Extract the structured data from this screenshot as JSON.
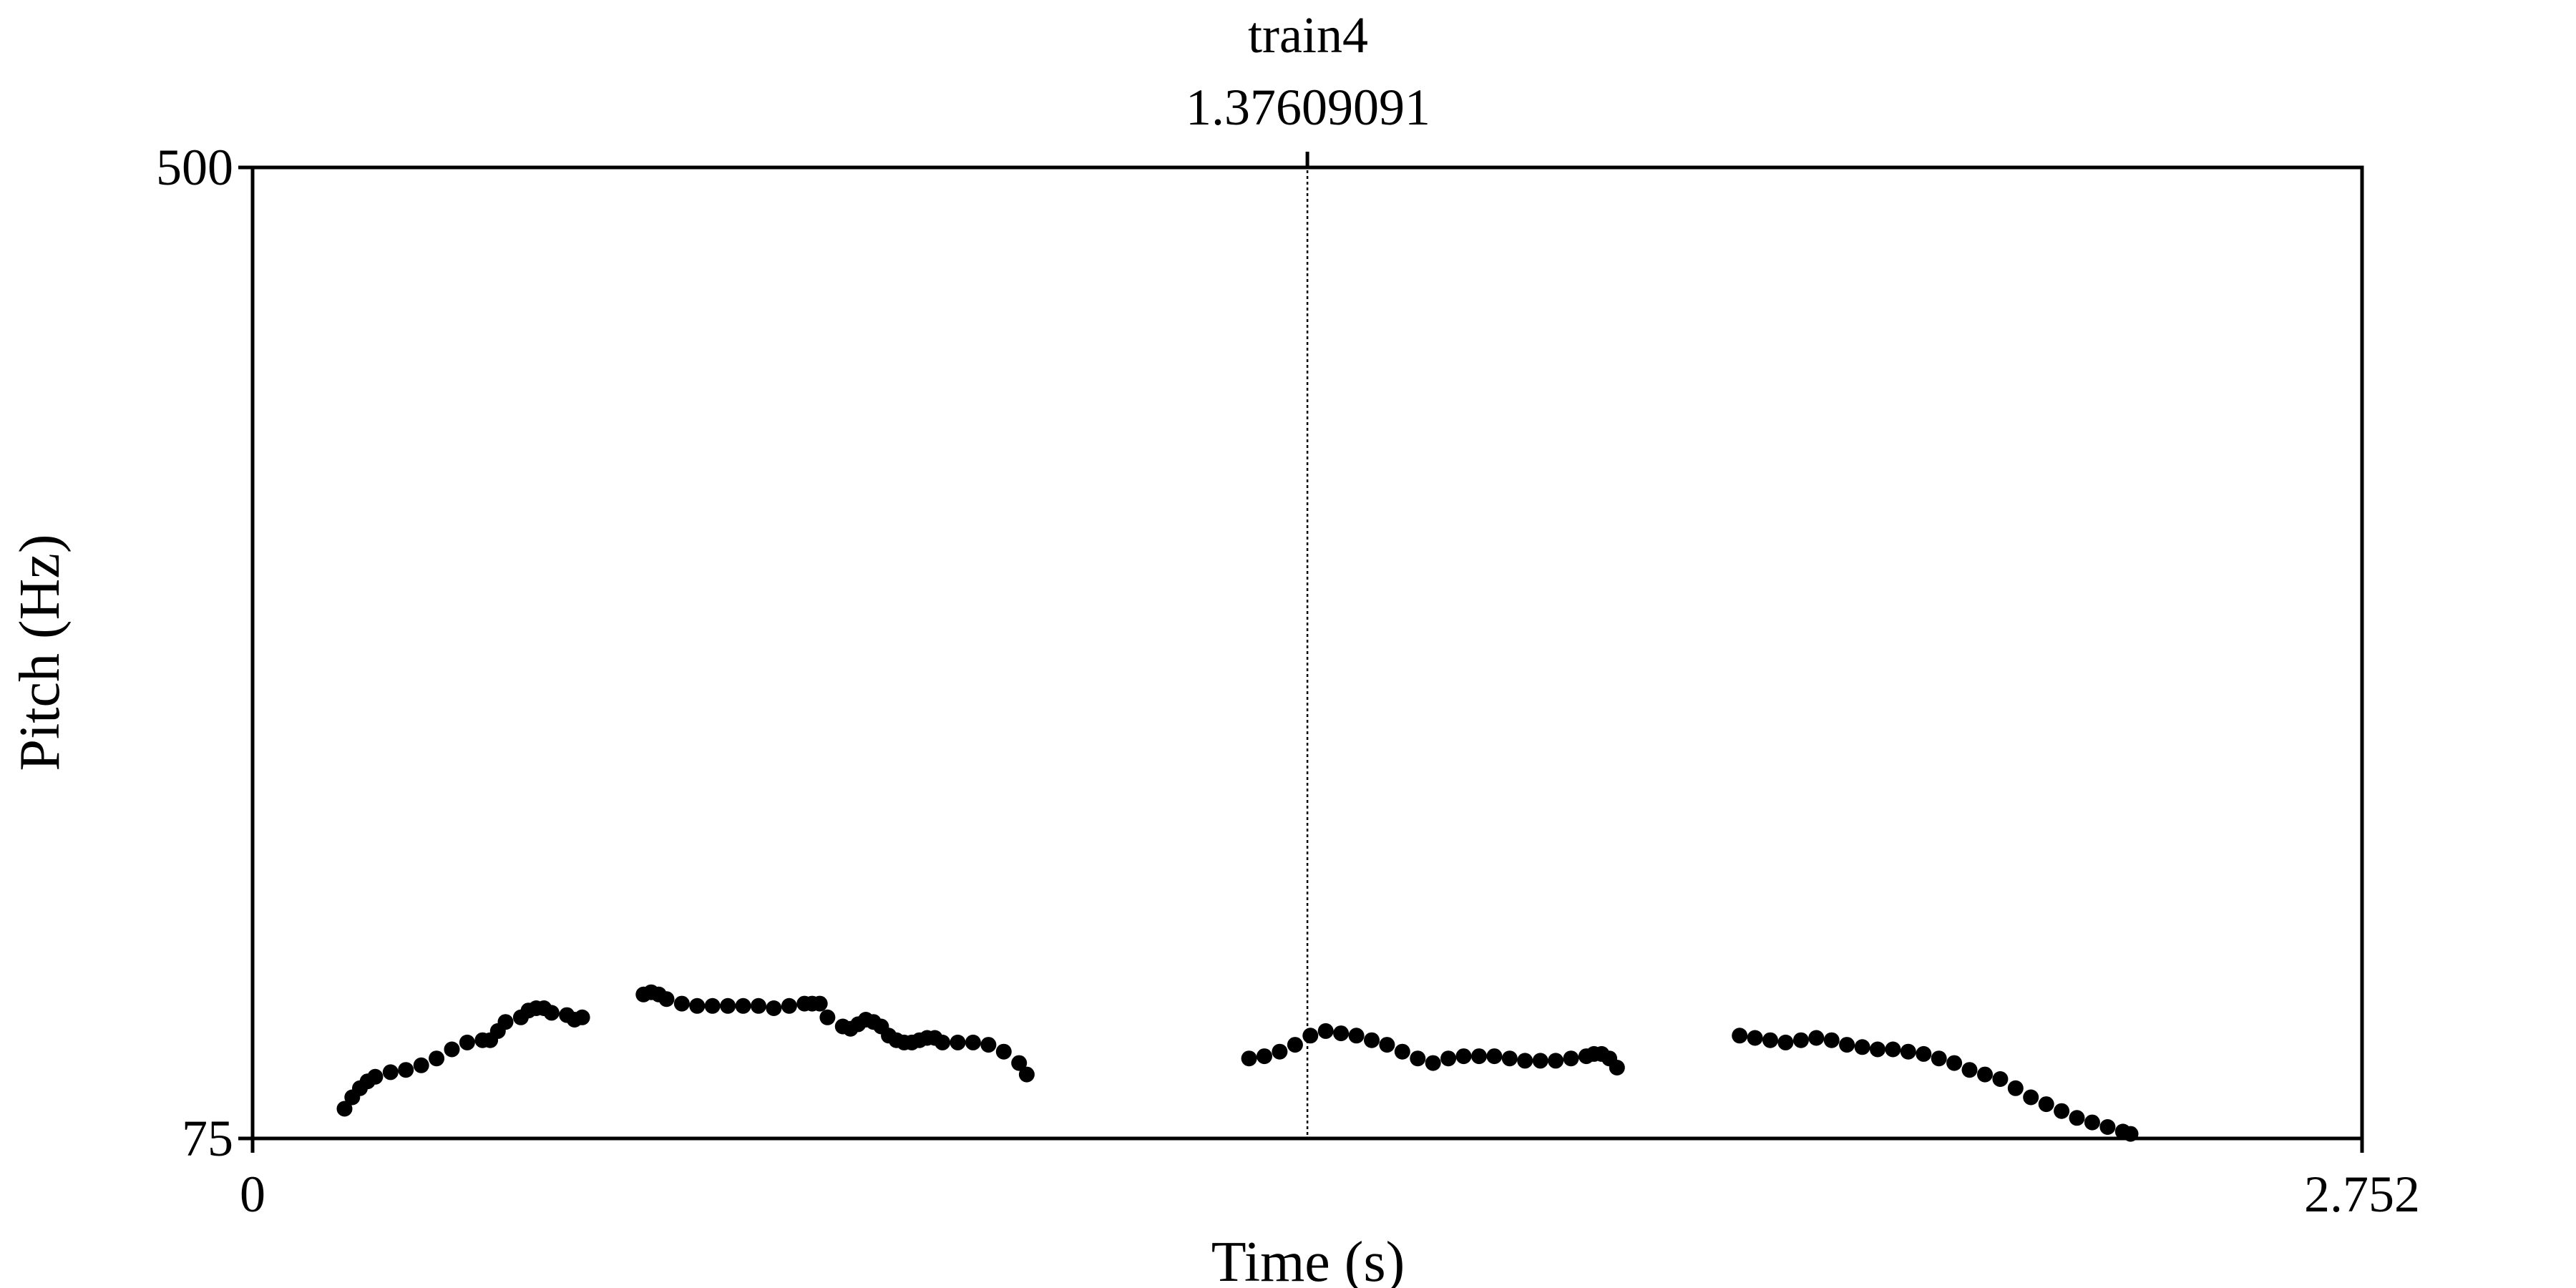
{
  "chart_data": {
    "type": "scatter",
    "title": "train4",
    "cursor": {
      "time": 1.37609091,
      "label": "1.37609091"
    },
    "xlabel": "Time (s)",
    "ylabel": "Pitch (Hz)",
    "xlim": [
      0,
      2.752
    ],
    "ylim": [
      75,
      500
    ],
    "x_tick_labels": [
      "0",
      "2.752"
    ],
    "y_tick_labels": [
      "75",
      "500"
    ],
    "grid": false,
    "marker_color": "#000000",
    "series": [
      {
        "points": [
          [
            0.12,
            88
          ],
          [
            0.13,
            93
          ],
          [
            0.14,
            97
          ],
          [
            0.15,
            100
          ],
          [
            0.16,
            102
          ],
          [
            0.18,
            104
          ],
          [
            0.2,
            105
          ],
          [
            0.22,
            107
          ],
          [
            0.24,
            110
          ],
          [
            0.26,
            114
          ],
          [
            0.28,
            117
          ],
          [
            0.3,
            118
          ],
          [
            0.31,
            118
          ],
          [
            0.32,
            122
          ],
          [
            0.33,
            126
          ],
          [
            0.35,
            128
          ],
          [
            0.36,
            131
          ],
          [
            0.37,
            132
          ],
          [
            0.38,
            132
          ],
          [
            0.39,
            130
          ],
          [
            0.41,
            129
          ],
          [
            0.42,
            127
          ],
          [
            0.43,
            128
          ],
          [
            0.51,
            138
          ],
          [
            0.52,
            139
          ],
          [
            0.53,
            138
          ],
          [
            0.54,
            136
          ],
          [
            0.56,
            134
          ],
          [
            0.58,
            133
          ],
          [
            0.6,
            133
          ],
          [
            0.62,
            133
          ],
          [
            0.64,
            133
          ],
          [
            0.66,
            133
          ],
          [
            0.68,
            132
          ],
          [
            0.7,
            133
          ],
          [
            0.72,
            134
          ],
          [
            0.73,
            134
          ],
          [
            0.74,
            134
          ],
          [
            0.75,
            128
          ],
          [
            0.77,
            124
          ],
          [
            0.78,
            123
          ],
          [
            0.79,
            125
          ],
          [
            0.8,
            127
          ],
          [
            0.81,
            126
          ],
          [
            0.82,
            124
          ],
          [
            0.83,
            120
          ],
          [
            0.84,
            118
          ],
          [
            0.85,
            117
          ],
          [
            0.86,
            117
          ],
          [
            0.87,
            118
          ],
          [
            0.88,
            119
          ],
          [
            0.89,
            119
          ],
          [
            0.9,
            117
          ],
          [
            0.92,
            117
          ],
          [
            0.94,
            117
          ],
          [
            0.96,
            116
          ],
          [
            0.98,
            113
          ],
          [
            1.0,
            108
          ],
          [
            1.01,
            103
          ],
          [
            1.3,
            110
          ],
          [
            1.32,
            111
          ],
          [
            1.34,
            113
          ],
          [
            1.36,
            116
          ],
          [
            1.38,
            120
          ],
          [
            1.4,
            122
          ],
          [
            1.42,
            121
          ],
          [
            1.44,
            120
          ],
          [
            1.46,
            118
          ],
          [
            1.48,
            116
          ],
          [
            1.5,
            113
          ],
          [
            1.52,
            110
          ],
          [
            1.54,
            108
          ],
          [
            1.56,
            110
          ],
          [
            1.58,
            111
          ],
          [
            1.6,
            111
          ],
          [
            1.62,
            111
          ],
          [
            1.64,
            110
          ],
          [
            1.66,
            109
          ],
          [
            1.68,
            109
          ],
          [
            1.7,
            109
          ],
          [
            1.72,
            110
          ],
          [
            1.74,
            111
          ],
          [
            1.75,
            112
          ],
          [
            1.76,
            112
          ],
          [
            1.77,
            110
          ],
          [
            1.78,
            106
          ],
          [
            1.94,
            120
          ],
          [
            1.96,
            119
          ],
          [
            1.98,
            118
          ],
          [
            2.0,
            117
          ],
          [
            2.02,
            118
          ],
          [
            2.04,
            119
          ],
          [
            2.06,
            118
          ],
          [
            2.08,
            116
          ],
          [
            2.1,
            115
          ],
          [
            2.12,
            114
          ],
          [
            2.14,
            114
          ],
          [
            2.16,
            113
          ],
          [
            2.18,
            112
          ],
          [
            2.2,
            110
          ],
          [
            2.22,
            108
          ],
          [
            2.24,
            105
          ],
          [
            2.26,
            103
          ],
          [
            2.28,
            101
          ],
          [
            2.3,
            97
          ],
          [
            2.32,
            93
          ],
          [
            2.34,
            90
          ],
          [
            2.36,
            87
          ],
          [
            2.38,
            84
          ],
          [
            2.4,
            82
          ],
          [
            2.42,
            80
          ],
          [
            2.44,
            78
          ],
          [
            2.45,
            77
          ]
        ]
      }
    ]
  }
}
